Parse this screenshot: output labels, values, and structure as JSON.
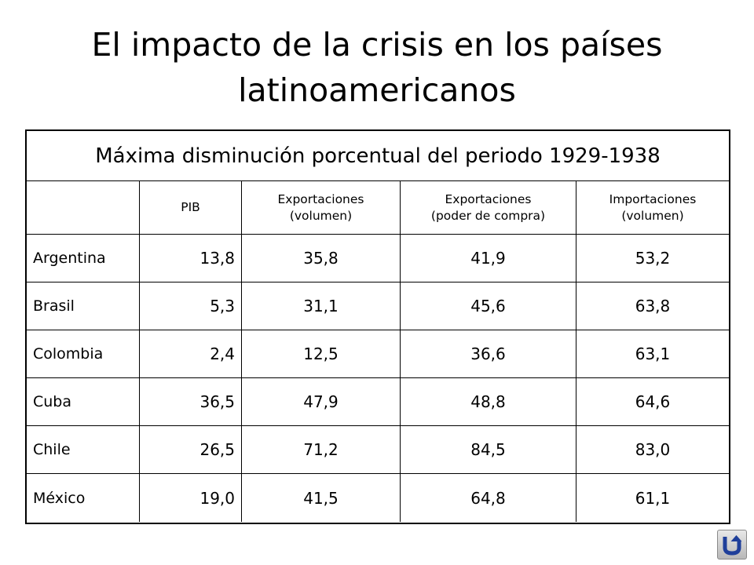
{
  "title": "El impacto de la crisis en los países latinoamericanos",
  "table": {
    "caption": "Máxima disminución porcentual del periodo 1929-1938",
    "headers": [
      "",
      "PIB",
      "Exportaciones\n(volumen)",
      "Exportaciones\n(poder de compra)",
      "Importaciones\n(volumen)"
    ],
    "rows": [
      [
        "Argentina",
        "13,8",
        "35,8",
        "41,9",
        "53,2"
      ],
      [
        "Brasil",
        "5,3",
        "31,1",
        "45,6",
        "63,8"
      ],
      [
        "Colombia",
        "2,4",
        "12,5",
        "36,6",
        "63,1"
      ],
      [
        "Cuba",
        "36,5",
        "47,9",
        "48,8",
        "64,6"
      ],
      [
        "Chile",
        "26,5",
        "71,2",
        "84,5",
        "83,0"
      ],
      [
        "México",
        "19,0",
        "41,5",
        "64,8",
        "61,1"
      ]
    ]
  },
  "nav": {
    "back_icon": "u-turn-back-icon",
    "icon_color": "#1f3f9a"
  }
}
